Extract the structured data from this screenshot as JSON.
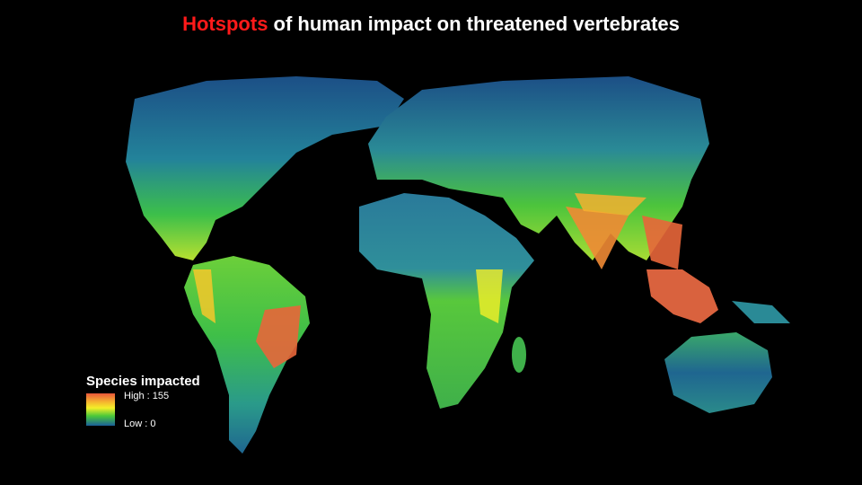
{
  "title": {
    "highlight": "Hotspots",
    "rest": " of human impact on threatened vertebrates"
  },
  "legend": {
    "title": "Species impacted",
    "high_label": "High : 155",
    "low_label": "Low : 0"
  }
}
